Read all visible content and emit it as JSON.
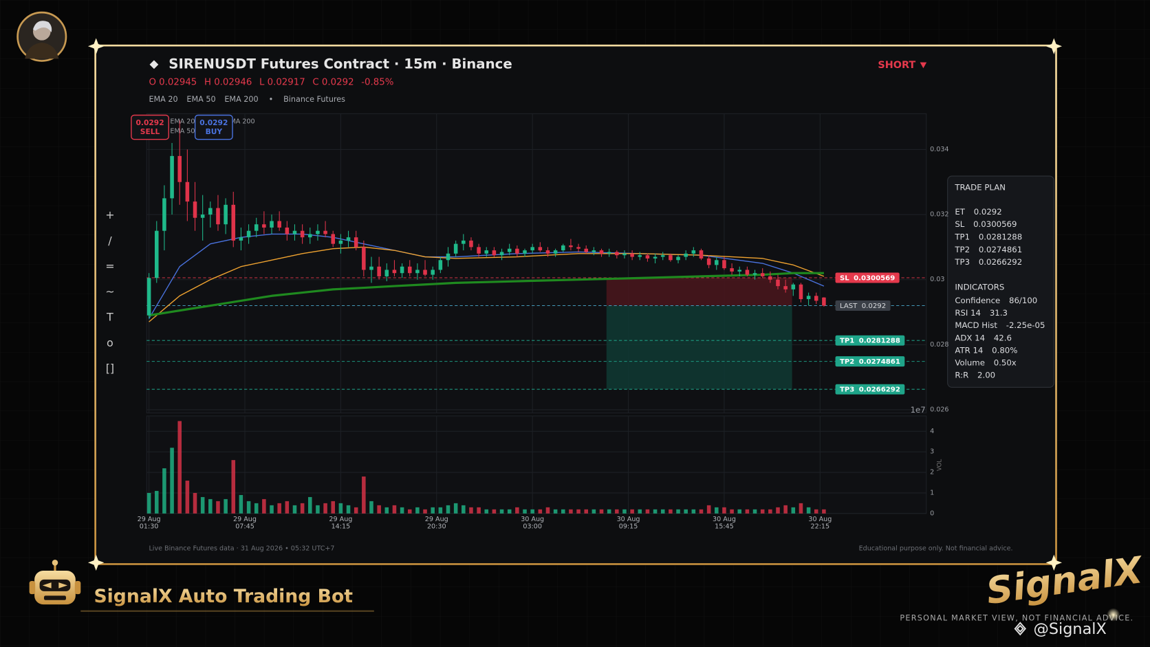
{
  "header": {
    "title": "SIRENUSDT Futures Contract · 15m · Binance",
    "side": "SHORT",
    "ohlc_line": [
      "O 0.02945",
      "H 0.02946",
      "L 0.02917",
      "C 0.0292",
      "-0.85%"
    ],
    "legend_separator": "•",
    "legend_note": "Binance Futures"
  },
  "toolbar": [
    "+",
    "/",
    "=",
    "~",
    "T",
    "o",
    "[]"
  ],
  "chart_data": {
    "type": "candlestick",
    "up_color": "#1fb98a",
    "down_color": "#e0334a",
    "grid": true,
    "xlim": [
      -0.6,
      202.7
    ],
    "xticks": [
      {
        "value": 0,
        "date": "29 Aug",
        "time": "01:30"
      },
      {
        "value": 25,
        "date": "29 Aug",
        "time": "07:45"
      },
      {
        "value": 50,
        "date": "29 Aug",
        "time": "14:15"
      },
      {
        "value": 75,
        "date": "29 Aug",
        "time": "20:30"
      },
      {
        "value": 100,
        "date": "30 Aug",
        "time": "03:00"
      },
      {
        "value": 125,
        "date": "30 Aug",
        "time": "09:15"
      },
      {
        "value": 150,
        "date": "30 Aug",
        "time": "15:45"
      },
      {
        "value": 175,
        "date": "30 Aug",
        "time": "22:15"
      }
    ],
    "ylim": [
      0.0259,
      0.0351
    ],
    "yticks": [
      0.026,
      0.028,
      0.03,
      0.032,
      0.034
    ],
    "x": [
      0,
      2,
      4,
      6,
      8,
      10,
      12,
      14,
      16,
      18,
      20,
      22,
      24,
      26,
      28,
      30,
      32,
      34,
      36,
      38,
      40,
      42,
      44,
      46,
      48,
      50,
      52,
      54,
      56,
      58,
      60,
      62,
      64,
      66,
      68,
      70,
      72,
      74,
      76,
      78,
      80,
      82,
      84,
      86,
      88,
      90,
      92,
      94,
      96,
      98,
      100,
      102,
      104,
      106,
      108,
      110,
      112,
      114,
      116,
      118,
      120,
      122,
      124,
      126,
      128,
      130,
      132,
      134,
      136,
      138,
      140,
      142,
      144,
      146,
      148,
      150,
      152,
      154,
      156,
      158,
      160,
      162,
      164,
      166,
      168,
      170,
      172,
      174,
      176
    ],
    "ohlc": [
      [
        0.0289,
        0.0302,
        0.0288,
        0.03005
      ],
      [
        0.03005,
        0.0318,
        0.0299,
        0.0315
      ],
      [
        0.0315,
        0.0329,
        0.0309,
        0.0325
      ],
      [
        0.0325,
        0.0342,
        0.032,
        0.0338
      ],
      [
        0.0338,
        0.0349,
        0.0323,
        0.033
      ],
      [
        0.033,
        0.034,
        0.0318,
        0.0324
      ],
      [
        0.0324,
        0.033,
        0.0315,
        0.0319
      ],
      [
        0.0319,
        0.0326,
        0.0312,
        0.032
      ],
      [
        0.032,
        0.0324,
        0.0316,
        0.0322
      ],
      [
        0.0322,
        0.0326,
        0.0315,
        0.0317
      ],
      [
        0.0317,
        0.0325,
        0.0314,
        0.0323
      ],
      [
        0.0323,
        0.0327,
        0.031,
        0.0312
      ],
      [
        0.0312,
        0.0316,
        0.0309,
        0.0313
      ],
      [
        0.0313,
        0.0317,
        0.0311,
        0.0315
      ],
      [
        0.0315,
        0.0319,
        0.0313,
        0.0317
      ],
      [
        0.0317,
        0.0321,
        0.0314,
        0.0316
      ],
      [
        0.0316,
        0.032,
        0.0314,
        0.0318
      ],
      [
        0.0318,
        0.0321,
        0.0315,
        0.0316
      ],
      [
        0.0316,
        0.0318,
        0.0312,
        0.0314
      ],
      [
        0.0314,
        0.0317,
        0.0312,
        0.0315
      ],
      [
        0.0315,
        0.0317,
        0.0311,
        0.0313
      ],
      [
        0.0313,
        0.0316,
        0.0311,
        0.0314
      ],
      [
        0.0314,
        0.0317,
        0.0312,
        0.0315
      ],
      [
        0.0315,
        0.0318,
        0.0313,
        0.0314
      ],
      [
        0.0314,
        0.0315,
        0.031,
        0.0311
      ],
      [
        0.0311,
        0.0314,
        0.0308,
        0.0312
      ],
      [
        0.0312,
        0.0315,
        0.031,
        0.0313
      ],
      [
        0.0313,
        0.0315,
        0.0309,
        0.031
      ],
      [
        0.031,
        0.0312,
        0.0301,
        0.0303
      ],
      [
        0.0303,
        0.0307,
        0.0299,
        0.0304
      ],
      [
        0.0304,
        0.0307,
        0.03,
        0.0301
      ],
      [
        0.0301,
        0.0305,
        0.02995,
        0.0303
      ],
      [
        0.0303,
        0.0306,
        0.0301,
        0.0302
      ],
      [
        0.0302,
        0.0305,
        0.03005,
        0.0304
      ],
      [
        0.0304,
        0.0306,
        0.0301,
        0.0302
      ],
      [
        0.0302,
        0.0305,
        0.03,
        0.0303
      ],
      [
        0.0303,
        0.0306,
        0.0301,
        0.03015
      ],
      [
        0.03015,
        0.0304,
        0.03,
        0.0303
      ],
      [
        0.0303,
        0.0307,
        0.0302,
        0.0306
      ],
      [
        0.0306,
        0.031,
        0.0304,
        0.0308
      ],
      [
        0.0308,
        0.0312,
        0.0307,
        0.0311
      ],
      [
        0.0311,
        0.0314,
        0.0309,
        0.0312
      ],
      [
        0.0312,
        0.0313,
        0.0309,
        0.031
      ],
      [
        0.031,
        0.0311,
        0.0307,
        0.0308
      ],
      [
        0.0308,
        0.031,
        0.0307,
        0.0309
      ],
      [
        0.0309,
        0.031,
        0.0307,
        0.03075
      ],
      [
        0.03075,
        0.03095,
        0.0306,
        0.03085
      ],
      [
        0.03085,
        0.0311,
        0.03075,
        0.03095
      ],
      [
        0.03095,
        0.03105,
        0.0307,
        0.0308
      ],
      [
        0.0308,
        0.03095,
        0.0307,
        0.0309
      ],
      [
        0.0309,
        0.0311,
        0.0308,
        0.031
      ],
      [
        0.031,
        0.03115,
        0.03085,
        0.0309
      ],
      [
        0.0309,
        0.031,
        0.0307,
        0.0308
      ],
      [
        0.0308,
        0.03095,
        0.0307,
        0.0309
      ],
      [
        0.0309,
        0.0311,
        0.03085,
        0.03105
      ],
      [
        0.03105,
        0.03125,
        0.0309,
        0.031
      ],
      [
        0.031,
        0.0311,
        0.03085,
        0.03095
      ],
      [
        0.03095,
        0.03105,
        0.0308,
        0.03085
      ],
      [
        0.03085,
        0.031,
        0.03075,
        0.0309
      ],
      [
        0.0309,
        0.03095,
        0.0307,
        0.0308
      ],
      [
        0.0308,
        0.03095,
        0.0307,
        0.03085
      ],
      [
        0.03085,
        0.0309,
        0.03065,
        0.03075
      ],
      [
        0.03075,
        0.0309,
        0.03065,
        0.0308
      ],
      [
        0.0308,
        0.0309,
        0.0306,
        0.0307
      ],
      [
        0.0307,
        0.03085,
        0.0306,
        0.03075
      ],
      [
        0.03075,
        0.0308,
        0.03055,
        0.03065
      ],
      [
        0.03065,
        0.0308,
        0.0305,
        0.0307
      ],
      [
        0.0307,
        0.03085,
        0.0306,
        0.03075
      ],
      [
        0.03075,
        0.0308,
        0.03055,
        0.0306
      ],
      [
        0.0306,
        0.03075,
        0.0305,
        0.0307
      ],
      [
        0.0307,
        0.0309,
        0.0306,
        0.0308
      ],
      [
        0.0308,
        0.031,
        0.0307,
        0.0309
      ],
      [
        0.0309,
        0.03095,
        0.0306,
        0.03065
      ],
      [
        0.03065,
        0.03075,
        0.03035,
        0.03045
      ],
      [
        0.03045,
        0.0307,
        0.0303,
        0.0306
      ],
      [
        0.0306,
        0.0307,
        0.0303,
        0.03035
      ],
      [
        0.03035,
        0.0305,
        0.03015,
        0.03025
      ],
      [
        0.03025,
        0.0304,
        0.0301,
        0.0303
      ],
      [
        0.0303,
        0.0304,
        0.0301,
        0.03015
      ],
      [
        0.03015,
        0.0303,
        0.03,
        0.0302
      ],
      [
        0.0302,
        0.03035,
        0.03005,
        0.0301
      ],
      [
        0.0301,
        0.03025,
        0.0299,
        0.03
      ],
      [
        0.03,
        0.03015,
        0.0297,
        0.0298
      ],
      [
        0.0298,
        0.03,
        0.0296,
        0.0297
      ],
      [
        0.0297,
        0.0299,
        0.0295,
        0.02985
      ],
      [
        0.02985,
        0.0299,
        0.0293,
        0.0294
      ],
      [
        0.0294,
        0.0296,
        0.0292,
        0.0295
      ],
      [
        0.0295,
        0.0296,
        0.02925,
        0.02935
      ],
      [
        0.02945,
        0.02946,
        0.02917,
        0.0292
      ]
    ],
    "volume": {
      "label": "VOL",
      "exponent": "1e7",
      "ylim": [
        0,
        4.75
      ],
      "yticks": [
        0,
        1,
        2,
        3,
        4
      ],
      "values": [
        1.0,
        1.1,
        2.2,
        3.2,
        4.5,
        1.6,
        1.0,
        0.8,
        0.7,
        0.6,
        0.7,
        2.6,
        0.9,
        0.6,
        0.5,
        0.7,
        0.4,
        0.5,
        0.6,
        0.4,
        0.5,
        0.8,
        0.4,
        0.5,
        0.6,
        0.5,
        0.4,
        0.3,
        1.8,
        0.6,
        0.4,
        0.3,
        0.4,
        0.3,
        0.2,
        0.3,
        0.2,
        0.3,
        0.3,
        0.4,
        0.5,
        0.4,
        0.3,
        0.3,
        0.2,
        0.2,
        0.2,
        0.2,
        0.3,
        0.2,
        0.2,
        0.2,
        0.3,
        0.2,
        0.2,
        0.2,
        0.2,
        0.2,
        0.2,
        0.2,
        0.2,
        0.2,
        0.2,
        0.2,
        0.2,
        0.2,
        0.2,
        0.2,
        0.2,
        0.2,
        0.2,
        0.2,
        0.2,
        0.4,
        0.3,
        0.3,
        0.2,
        0.2,
        0.2,
        0.2,
        0.2,
        0.2,
        0.3,
        0.4,
        0.3,
        0.5,
        0.3,
        0.2,
        0.2
      ]
    },
    "series": [
      {
        "name": "EMA 20",
        "color": "#4a73e0",
        "width": 1.3,
        "x": [
          0,
          8,
          16,
          24,
          32,
          40,
          48,
          56,
          64,
          72,
          80,
          96,
          112,
          128,
          144,
          160,
          168,
          176
        ],
        "values": [
          0.0288,
          0.0304,
          0.0311,
          0.0313,
          0.0314,
          0.0314,
          0.0313,
          0.0311,
          0.0309,
          0.0307,
          0.0307,
          0.0308,
          0.03085,
          0.0308,
          0.03075,
          0.0305,
          0.0302,
          0.0298
        ]
      },
      {
        "name": "EMA 50",
        "color": "#f0a330",
        "width": 1.3,
        "x": [
          0,
          8,
          16,
          24,
          32,
          40,
          48,
          56,
          64,
          72,
          80,
          96,
          112,
          128,
          144,
          160,
          168,
          176
        ],
        "values": [
          0.0287,
          0.0295,
          0.03,
          0.0304,
          0.0306,
          0.0308,
          0.03095,
          0.031,
          0.0309,
          0.0307,
          0.03065,
          0.0307,
          0.0308,
          0.0308,
          0.03075,
          0.03065,
          0.03045,
          0.0301
        ]
      },
      {
        "name": "EMA 200",
        "color": "#1f8a1f",
        "width": 3,
        "x": [
          0,
          8,
          16,
          24,
          32,
          40,
          48,
          56,
          64,
          72,
          80,
          96,
          112,
          128,
          144,
          160,
          168,
          176
        ],
        "values": [
          0.0289,
          0.02905,
          0.0292,
          0.02935,
          0.0295,
          0.0296,
          0.0297,
          0.02975,
          0.0298,
          0.02985,
          0.0299,
          0.02995,
          0.03,
          0.03005,
          0.0301,
          0.03015,
          0.0302,
          0.0302
        ]
      }
    ],
    "levels": [
      {
        "name": "SL",
        "value": 0.0300569,
        "color": "#e5394c",
        "badge": "#e5394c"
      },
      {
        "name": "LAST",
        "value": 0.0292,
        "color": "#4aa8cc",
        "badge": "#3a3f47"
      },
      {
        "name": "TP1",
        "value": 0.0281288,
        "color": "#1fa58a",
        "badge": "#1fa58a"
      },
      {
        "name": "TP2",
        "value": 0.0274861,
        "color": "#1fa58a",
        "badge": "#1fa58a"
      },
      {
        "name": "TP3",
        "value": 0.0266292,
        "color": "#1fa58a",
        "badge": "#1fa58a"
      }
    ],
    "zones": [
      {
        "x": [
          119.3,
          167.7
        ],
        "y": [
          0.0300569,
          0.0292
        ],
        "color": "#4a161d"
      },
      {
        "x": [
          119.3,
          167.7
        ],
        "y": [
          0.0292,
          0.0266292
        ],
        "color": "#0f3a34"
      }
    ],
    "badges": [
      {
        "price": "0.0292",
        "side": "SELL",
        "color": "#e5394c"
      },
      {
        "price": "0.0292",
        "side": "BUY",
        "color": "#4a73e0"
      }
    ]
  },
  "trade_plan": {
    "title": "TRADE PLAN",
    "rows": [
      [
        "ET",
        "0.0292"
      ],
      [
        "SL",
        "0.0300569"
      ],
      [
        "TP1",
        "0.0281288"
      ],
      [
        "TP2",
        "0.0274861"
      ],
      [
        "TP3",
        "0.0266292"
      ]
    ],
    "indicators_title": "INDICATORS",
    "indicators": [
      [
        "Confidence",
        "86/100"
      ],
      [
        "RSI 14",
        "31.3"
      ],
      [
        "MACD Hist",
        "-2.25e-05"
      ],
      [
        "ADX 14",
        "42.6"
      ],
      [
        "ATR 14",
        "0.80%"
      ],
      [
        "Volume",
        "0.50x"
      ],
      [
        "R:R",
        "2.00"
      ]
    ]
  },
  "footer": {
    "left": "Live Binance Futures data  ·  31 Aug 2026 • 05:32 UTC+7",
    "right": "Educational purpose only. Not financial advice."
  },
  "branding": {
    "bot_name": "SignalX Auto Trading Bot",
    "logo": "SignalX",
    "disclaimer": "PERSONAL MARKET VIEW, NOT FINANCIAL ADVICE.",
    "handle": "@SignalX"
  }
}
